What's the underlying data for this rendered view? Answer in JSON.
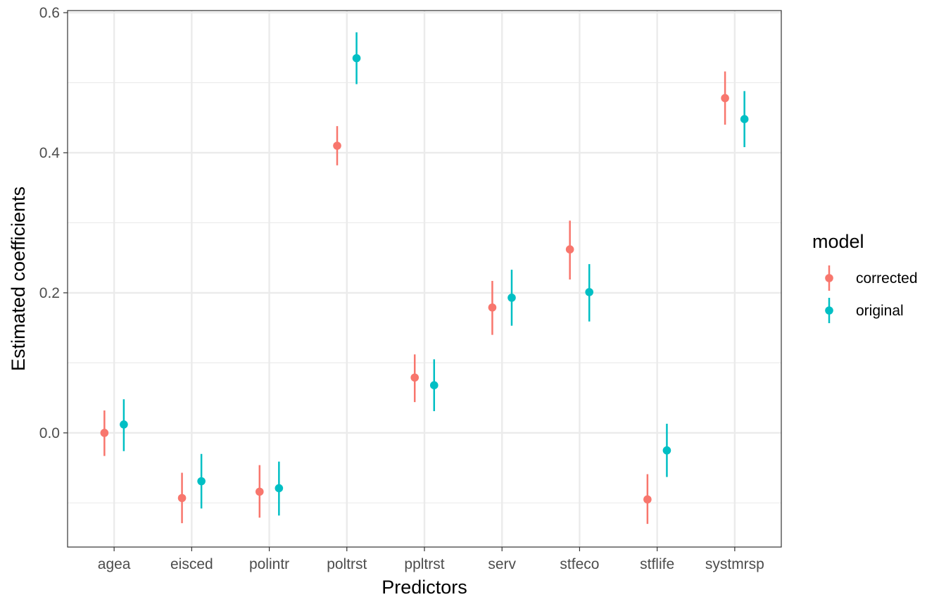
{
  "chart_data": {
    "type": "scatter",
    "subtype": "pointrange",
    "xlabel": "Predictors",
    "ylabel": "Estimated coefficients",
    "categories": [
      "agea",
      "eisced",
      "polintr",
      "poltrst",
      "ppltrst",
      "serv",
      "stfeco",
      "stflife",
      "systmrsp"
    ],
    "ylim": [
      -0.163,
      0.603
    ],
    "yticks": [
      0.0,
      0.2,
      0.4,
      0.6
    ],
    "yticklabels": [
      "0.0",
      "0.2",
      "0.4",
      "0.6"
    ],
    "grid": true,
    "legend": {
      "title": "model",
      "position": "right"
    },
    "series": [
      {
        "name": "corrected",
        "color": "#F8766D",
        "values": [
          0.0,
          -0.093,
          -0.084,
          0.41,
          0.079,
          0.179,
          0.262,
          -0.095,
          0.478
        ],
        "lower": [
          -0.033,
          -0.129,
          -0.121,
          0.382,
          0.044,
          0.14,
          0.219,
          -0.13,
          0.44
        ],
        "upper": [
          0.032,
          -0.057,
          -0.046,
          0.438,
          0.112,
          0.217,
          0.303,
          -0.059,
          0.516
        ]
      },
      {
        "name": "original",
        "color": "#00BFC4",
        "values": [
          0.012,
          -0.069,
          -0.079,
          0.535,
          0.068,
          0.193,
          0.201,
          -0.025,
          0.448
        ],
        "lower": [
          -0.026,
          -0.108,
          -0.118,
          0.498,
          0.031,
          0.153,
          0.159,
          -0.063,
          0.408
        ],
        "upper": [
          0.048,
          -0.03,
          -0.041,
          0.572,
          0.105,
          0.233,
          0.241,
          0.013,
          0.488
        ]
      }
    ]
  }
}
